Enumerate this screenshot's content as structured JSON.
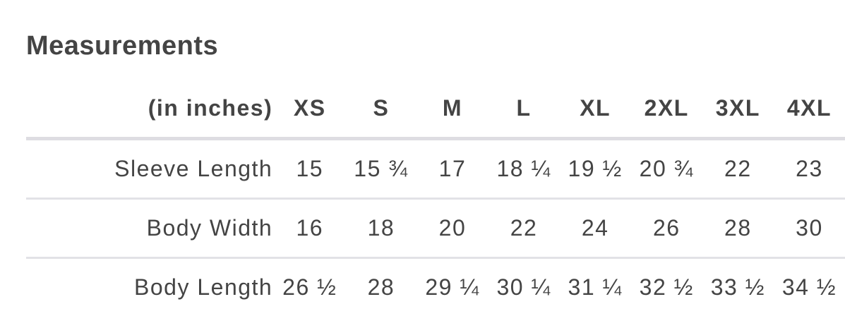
{
  "title": "Measurements",
  "table": {
    "unit_label": "(in inches)",
    "sizes": [
      "XS",
      "S",
      "M",
      "L",
      "XL",
      "2XL",
      "3XL",
      "4XL"
    ],
    "rows": [
      {
        "label": "Sleeve Length",
        "values": [
          "15",
          "15 ¾",
          "17",
          "18 ¼",
          "19 ½",
          "20 ¾",
          "22",
          "23"
        ]
      },
      {
        "label": "Body Width",
        "values": [
          "16",
          "18",
          "20",
          "22",
          "24",
          "26",
          "28",
          "30"
        ]
      },
      {
        "label": "Body Length",
        "values": [
          "26 ½",
          "28",
          "29 ¼",
          "30 ¼",
          "31 ¼",
          "32 ½",
          "33 ½",
          "34 ½"
        ]
      }
    ]
  },
  "colors": {
    "text": "#444444",
    "divider": "#dedde2"
  }
}
